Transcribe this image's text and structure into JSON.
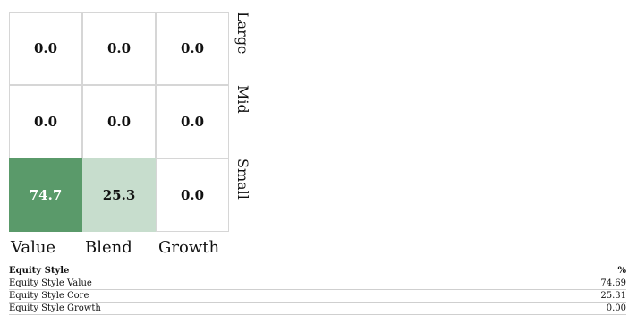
{
  "chart_data": {
    "type": "heatmap",
    "rows": [
      "Large",
      "Mid",
      "Small"
    ],
    "columns": [
      "Value",
      "Blend",
      "Growth"
    ],
    "values": [
      [
        0.0,
        0.0,
        0.0
      ],
      [
        0.0,
        0.0,
        0.0
      ],
      [
        74.7,
        25.3,
        0.0
      ]
    ],
    "cell_text": [
      [
        "0.0",
        "0.0",
        "0.0"
      ],
      [
        "0.0",
        "0.0",
        "0.0"
      ],
      [
        "74.7",
        "25.3",
        "0.0"
      ]
    ],
    "color_scale": {
      "low": "#ffffff",
      "high": "#5a9a6a"
    }
  },
  "table": {
    "header": {
      "label": "Equity Style",
      "unit": "%"
    },
    "rows": [
      {
        "label": "Equity Style Value",
        "value": "74.69"
      },
      {
        "label": "Equity Style Core",
        "value": "25.31"
      },
      {
        "label": "Equity Style Growth",
        "value": "0.00"
      }
    ]
  }
}
